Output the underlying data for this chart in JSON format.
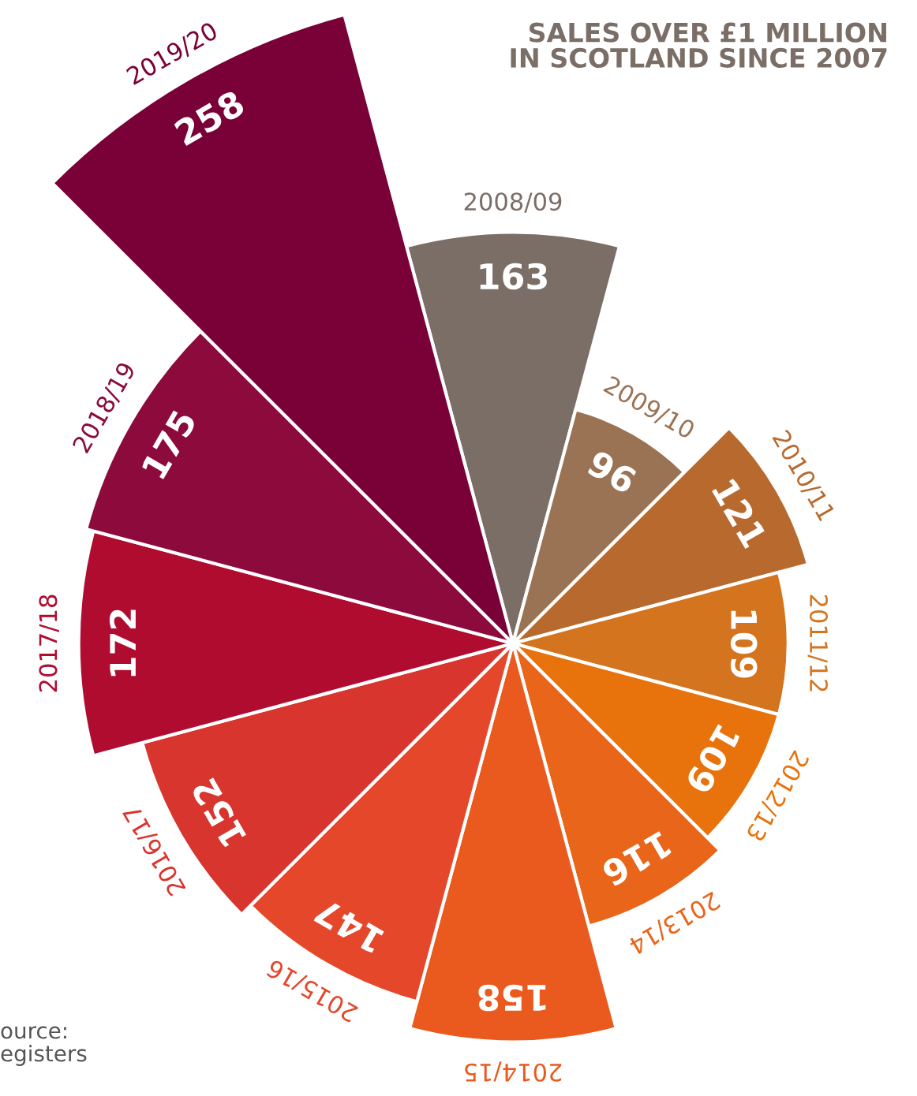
{
  "chart_data": {
    "type": "other",
    "title": "SALES OVER £1 MILLION\nIN SCOTLAND SINCE 2007",
    "categories": [
      "2008/09",
      "2009/10",
      "2010/11",
      "2011/12",
      "2012/13",
      "2013/14",
      "2014/15",
      "2015/16",
      "2016/17",
      "2017/18",
      "2018/19",
      "2019/20"
    ],
    "values": [
      163,
      96,
      121,
      109,
      109,
      116,
      158,
      147,
      152,
      172,
      175,
      258
    ],
    "colors": [
      "#7a6e66",
      "#9a7355",
      "#b86a2e",
      "#d4741e",
      "#e8730c",
      "#e8651a",
      "#ea5a1e",
      "#e4472a",
      "#d8352e",
      "#b00c30",
      "#8c0a3c",
      "#7a0038"
    ],
    "data_labels": true,
    "annotations": [
      "ource:\negisters"
    ]
  }
}
